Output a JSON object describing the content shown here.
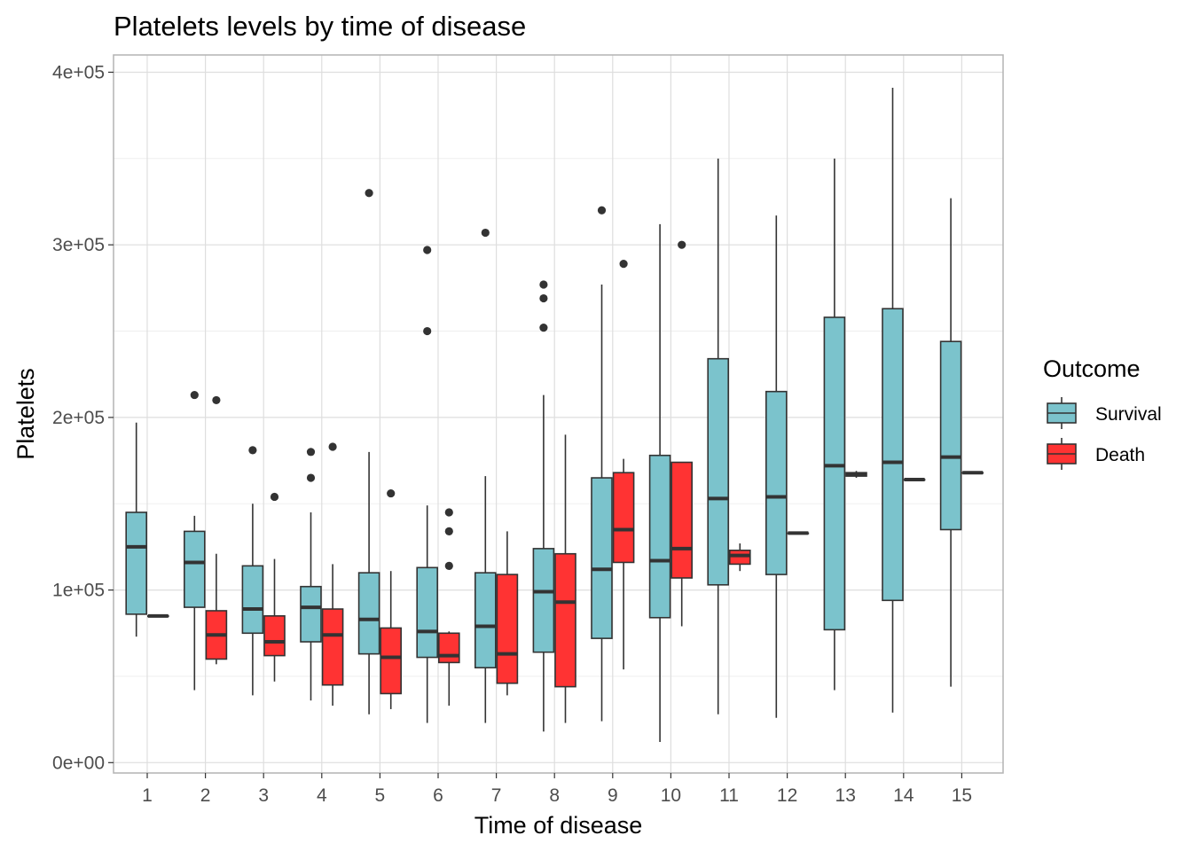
{
  "chart_data": {
    "type": "boxplot",
    "title": "Platelets levels by time of disease",
    "xlabel": "Time of disease",
    "ylabel": "Platelets",
    "categories": [
      "1",
      "2",
      "3",
      "4",
      "5",
      "6",
      "7",
      "8",
      "9",
      "10",
      "11",
      "12",
      "13",
      "14",
      "15"
    ],
    "y_ticks": [
      0,
      100000,
      200000,
      300000,
      400000
    ],
    "y_tick_labels": [
      "0e+00",
      "1e+05",
      "2e+05",
      "3e+05",
      "4e+05"
    ],
    "ylim": [
      -6000,
      410000
    ],
    "grid": true,
    "legend": {
      "title": "Outcome",
      "position": "right"
    },
    "series": [
      {
        "name": "Survival",
        "color": "#7bc3cc",
        "boxes": [
          {
            "category": "1",
            "whisker_low": 73000,
            "q1": 86000,
            "median": 125000,
            "q3": 145000,
            "whisker_high": 197000,
            "outliers": []
          },
          {
            "category": "2",
            "whisker_low": 42000,
            "q1": 90000,
            "median": 116000,
            "q3": 134000,
            "whisker_high": 143000,
            "outliers": [
              213000
            ]
          },
          {
            "category": "3",
            "whisker_low": 39000,
            "q1": 75000,
            "median": 89000,
            "q3": 114000,
            "whisker_high": 150000,
            "outliers": [
              181000
            ]
          },
          {
            "category": "4",
            "whisker_low": 36000,
            "q1": 70000,
            "median": 90000,
            "q3": 102000,
            "whisker_high": 145000,
            "outliers": [
              165000,
              180000
            ]
          },
          {
            "category": "5",
            "whisker_low": 28000,
            "q1": 63000,
            "median": 83000,
            "q3": 110000,
            "whisker_high": 180000,
            "outliers": [
              330000
            ]
          },
          {
            "category": "6",
            "whisker_low": 23000,
            "q1": 61000,
            "median": 76000,
            "q3": 113000,
            "whisker_high": 149000,
            "outliers": [
              250000,
              297000
            ]
          },
          {
            "category": "7",
            "whisker_low": 23000,
            "q1": 55000,
            "median": 79000,
            "q3": 110000,
            "whisker_high": 166000,
            "outliers": [
              307000
            ]
          },
          {
            "category": "8",
            "whisker_low": 18000,
            "q1": 64000,
            "median": 99000,
            "q3": 124000,
            "whisker_high": 213000,
            "outliers": [
              252000,
              269000,
              277000
            ]
          },
          {
            "category": "9",
            "whisker_low": 24000,
            "q1": 72000,
            "median": 112000,
            "q3": 165000,
            "whisker_high": 277000,
            "outliers": [
              320000
            ]
          },
          {
            "category": "10",
            "whisker_low": 12000,
            "q1": 84000,
            "median": 117000,
            "q3": 178000,
            "whisker_high": 312000,
            "outliers": []
          },
          {
            "category": "11",
            "whisker_low": 28000,
            "q1": 103000,
            "median": 153000,
            "q3": 234000,
            "whisker_high": 350000,
            "outliers": []
          },
          {
            "category": "12",
            "whisker_low": 26000,
            "q1": 109000,
            "median": 154000,
            "q3": 215000,
            "whisker_high": 317000,
            "outliers": []
          },
          {
            "category": "13",
            "whisker_low": 42000,
            "q1": 77000,
            "median": 172000,
            "q3": 258000,
            "whisker_high": 350000,
            "outliers": []
          },
          {
            "category": "14",
            "whisker_low": 29000,
            "q1": 94000,
            "median": 174000,
            "q3": 263000,
            "whisker_high": 391000,
            "outliers": []
          },
          {
            "category": "15",
            "whisker_low": 44000,
            "q1": 135000,
            "median": 177000,
            "q3": 244000,
            "whisker_high": 327000,
            "outliers": []
          }
        ]
      },
      {
        "name": "Death",
        "color": "#ff3333",
        "boxes": [
          {
            "category": "1",
            "whisker_low": 85000,
            "q1": 85000,
            "median": 85000,
            "q3": 85000,
            "whisker_high": 85000,
            "outliers": []
          },
          {
            "category": "2",
            "whisker_low": 57000,
            "q1": 60000,
            "median": 74000,
            "q3": 88000,
            "whisker_high": 121000,
            "outliers": [
              210000
            ]
          },
          {
            "category": "3",
            "whisker_low": 47000,
            "q1": 62000,
            "median": 70000,
            "q3": 85000,
            "whisker_high": 118000,
            "outliers": [
              154000
            ]
          },
          {
            "category": "4",
            "whisker_low": 33000,
            "q1": 45000,
            "median": 74000,
            "q3": 89000,
            "whisker_high": 115000,
            "outliers": [
              183000
            ]
          },
          {
            "category": "5",
            "whisker_low": 31000,
            "q1": 40000,
            "median": 61000,
            "q3": 78000,
            "whisker_high": 111000,
            "outliers": [
              156000
            ]
          },
          {
            "category": "6",
            "whisker_low": 33000,
            "q1": 58000,
            "median": 62000,
            "q3": 75000,
            "whisker_high": 76000,
            "outliers": [
              114000,
              134000,
              145000
            ]
          },
          {
            "category": "7",
            "whisker_low": 39000,
            "q1": 46000,
            "median": 63000,
            "q3": 109000,
            "whisker_high": 134000,
            "outliers": []
          },
          {
            "category": "8",
            "whisker_low": 23000,
            "q1": 44000,
            "median": 93000,
            "q3": 121000,
            "whisker_high": 190000,
            "outliers": []
          },
          {
            "category": "9",
            "whisker_low": 54000,
            "q1": 116000,
            "median": 135000,
            "q3": 168000,
            "whisker_high": 176000,
            "outliers": [
              289000
            ]
          },
          {
            "category": "10",
            "whisker_low": 79000,
            "q1": 107000,
            "median": 124000,
            "q3": 174000,
            "whisker_high": 174000,
            "outliers": [
              300000
            ]
          },
          {
            "category": "11",
            "whisker_low": 111000,
            "q1": 115000,
            "median": 120000,
            "q3": 123000,
            "whisker_high": 127000,
            "outliers": []
          },
          {
            "category": "12",
            "whisker_low": 133000,
            "q1": 133000,
            "median": 133000,
            "q3": 133000,
            "whisker_high": 133000,
            "outliers": []
          },
          {
            "category": "13",
            "whisker_low": 165000,
            "q1": 166000,
            "median": 167000,
            "q3": 168000,
            "whisker_high": 169000,
            "outliers": []
          },
          {
            "category": "14",
            "whisker_low": 164000,
            "q1": 164000,
            "median": 164000,
            "q3": 164000,
            "whisker_high": 164000,
            "outliers": []
          },
          {
            "category": "15",
            "whisker_low": 168000,
            "q1": 168000,
            "median": 168000,
            "q3": 168000,
            "whisker_high": 168000,
            "outliers": []
          }
        ]
      }
    ]
  }
}
